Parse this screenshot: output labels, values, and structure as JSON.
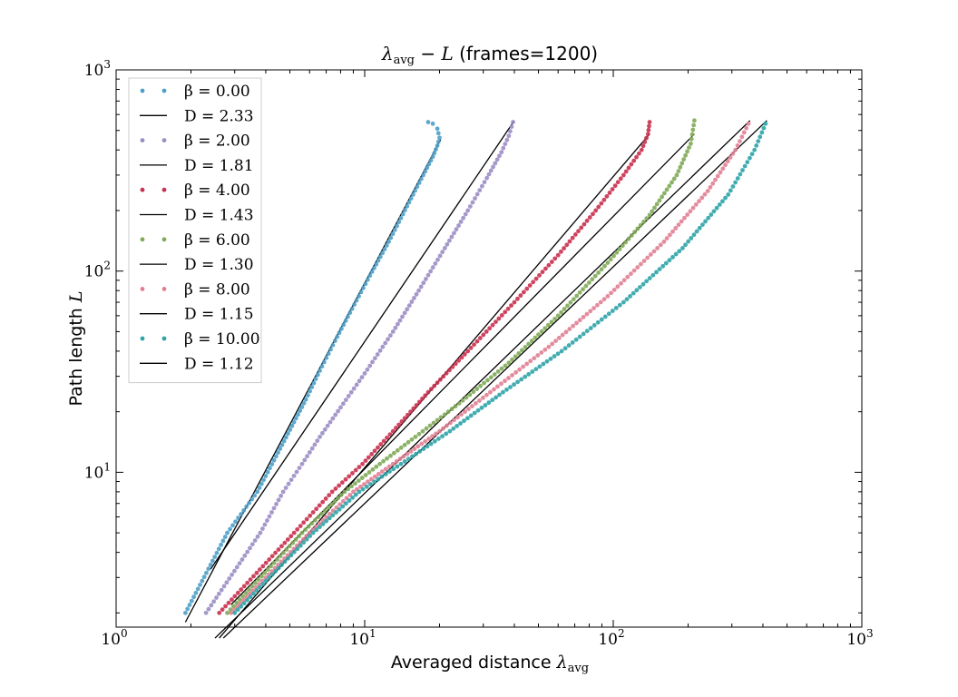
{
  "chart_data": {
    "type": "scatter",
    "title": "λavg − L (frames=1200)",
    "xlabel": "Averaged distance λavg",
    "ylabel": "Path length L",
    "xscale": "log",
    "yscale": "log",
    "xlim": [
      1,
      1000
    ],
    "ylim": [
      1.7,
      1000
    ],
    "x_ticks": [
      "10^0",
      "10^1",
      "10^2",
      "10^3"
    ],
    "y_ticks": [
      "10^1",
      "10^2",
      "10^3"
    ],
    "grid": false,
    "legend_position": "top-left",
    "series": [
      {
        "name": "β = 0.00",
        "kind": "points",
        "color": "#4e9fc7",
        "x": [
          1.9,
          2.8,
          3.7,
          4.4,
          5.1,
          5.8,
          6.6,
          7.6,
          8.9,
          10.5,
          12.5,
          14.8,
          17.2,
          18.8,
          19.6,
          20.0,
          19.6,
          18.8,
          18.0
        ],
        "y": [
          2,
          5,
          8,
          12,
          17,
          23,
          32,
          45,
          65,
          95,
          140,
          210,
          300,
          370,
          420,
          460,
          510,
          540,
          550
        ]
      },
      {
        "name": "D = 2.33",
        "kind": "line",
        "color": "#000000",
        "x": [
          1.9,
          20.2
        ],
        "y": [
          1.8,
          450
        ]
      },
      {
        "name": "β = 2.00",
        "kind": "points",
        "color": "#9b8dc4",
        "x": [
          2.3,
          3.8,
          4.7,
          5.6,
          6.6,
          8.0,
          10.0,
          13.0,
          16.5,
          21.0,
          26.0,
          31.0,
          35.5,
          38.0,
          39.5
        ],
        "y": [
          2,
          5,
          8,
          11,
          15,
          21,
          31,
          50,
          80,
          130,
          200,
          290,
          390,
          470,
          550
        ]
      },
      {
        "name": "D = 1.81",
        "kind": "line",
        "color": "#000000",
        "x": [
          2.4,
          40.0
        ],
        "y": [
          3.3,
          560
        ]
      },
      {
        "name": "β = 4.00",
        "kind": "points",
        "color": "#c9304e",
        "x": [
          2.6,
          5.2,
          7.4,
          9.8,
          13.0,
          18.0,
          26.0,
          40.0,
          60.0,
          85.0,
          110.0,
          130.0,
          138.0,
          140.0
        ],
        "y": [
          2,
          5,
          8,
          11,
          16,
          25,
          40,
          70,
          120,
          200,
          300,
          400,
          480,
          550
        ]
      },
      {
        "name": "D = 1.43",
        "kind": "line",
        "color": "#000000",
        "x": [
          2.6,
          140.0
        ],
        "y": [
          1.5,
          480
        ]
      },
      {
        "name": "β = 6.00",
        "kind": "points",
        "color": "#7faa58",
        "x": [
          2.8,
          5.6,
          8.3,
          11.5,
          16.0,
          24.0,
          38.0,
          60.0,
          95.0,
          140.0,
          180.0,
          205.0,
          212.0
        ],
        "y": [
          2,
          5,
          8,
          11,
          15,
          22,
          35,
          60,
          110,
          190,
          300,
          430,
          560
        ]
      },
      {
        "name": "D = 1.30",
        "kind": "line",
        "color": "#000000",
        "x": [
          2.9,
          212.0
        ],
        "y": [
          2.2,
          480
        ]
      },
      {
        "name": "β = 8.00",
        "kind": "points",
        "color": "#e07f93",
        "x": [
          2.9,
          6.0,
          9.0,
          13.0,
          20.0,
          32.0,
          55.0,
          95.0,
          160.0,
          240.0,
          310.0,
          350.0
        ],
        "y": [
          2,
          5,
          8,
          11,
          16,
          25,
          42,
          75,
          140,
          250,
          400,
          540
        ]
      },
      {
        "name": "D = 1.15",
        "kind": "line",
        "color": "#000000",
        "x": [
          2.5,
          355.0
        ],
        "y": [
          1.5,
          560
        ]
      },
      {
        "name": "β = 10.00",
        "kind": "points",
        "color": "#2ea3a8",
        "x": [
          3.0,
          6.2,
          9.5,
          14.0,
          22.0,
          36.0,
          62.0,
          110.0,
          190.0,
          290.0,
          370.0,
          410.0
        ],
        "y": [
          2,
          5,
          8,
          11,
          16,
          25,
          40,
          70,
          130,
          240,
          400,
          540
        ]
      },
      {
        "name": "D = 1.12",
        "kind": "line",
        "color": "#000000",
        "x": [
          2.7,
          415.0
        ],
        "y": [
          1.5,
          560
        ]
      }
    ]
  }
}
